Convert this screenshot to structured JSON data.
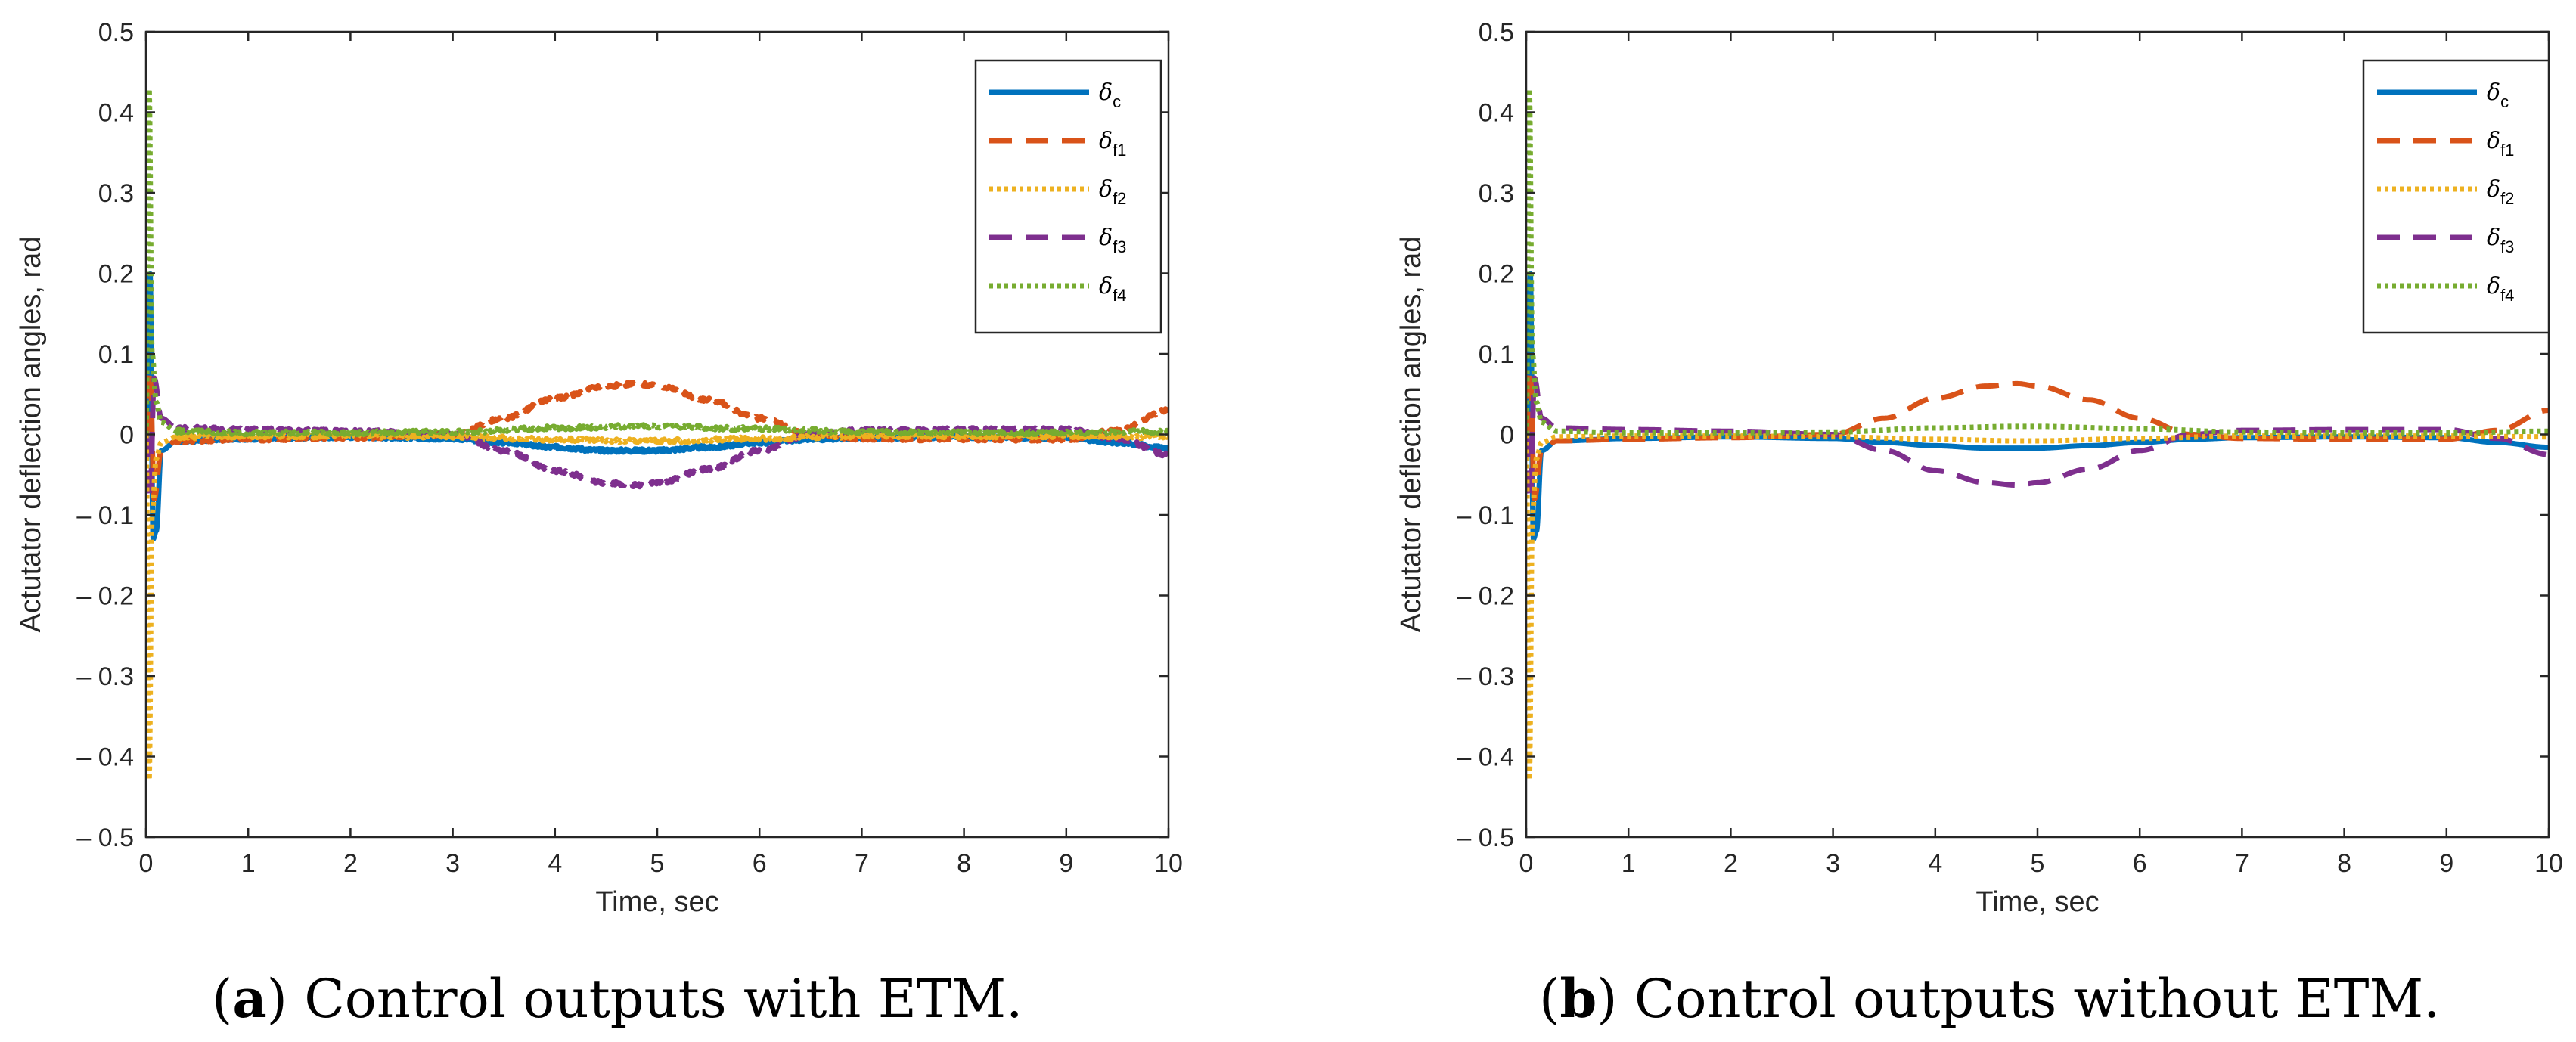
{
  "figure": {
    "charts": [
      {
        "id": "a",
        "caption_letter": "a",
        "caption_text": "Control outputs with ETM.",
        "caption_open": "(",
        "caption_close": ") ",
        "noisy": true
      },
      {
        "id": "b",
        "caption_letter": "b",
        "caption_text": "Control outputs without ETM.",
        "caption_open": "(",
        "caption_close": ") ",
        "noisy": false
      }
    ]
  },
  "chart_data": [
    {
      "type": "line",
      "title": "",
      "xlabel": "Time, sec",
      "ylabel": "Actutator deflection angles, rad",
      "xlim": [
        0,
        10
      ],
      "ylim": [
        -0.5,
        0.5
      ],
      "xticks": [
        "0",
        "1",
        "2",
        "3",
        "4",
        "5",
        "6",
        "7",
        "8",
        "9",
        "10"
      ],
      "yticks": [
        "0.5",
        "0.4",
        "0.3",
        "0.2",
        "0.1",
        "0",
        "– 0.1",
        "– 0.2",
        "– 0.3",
        "– 0.4",
        "– 0.5"
      ],
      "legend_position": "top-right",
      "series": [
        {
          "name": "δc",
          "sym": "δ",
          "sub": "c",
          "color": "#0072BD",
          "style": "solid",
          "x": [
            0,
            0.04,
            0.07,
            0.1,
            0.15,
            0.3,
            1,
            2,
            3,
            3.5,
            4,
            4.5,
            5,
            5.5,
            6,
            6.5,
            7,
            8,
            9,
            9.5,
            10
          ],
          "y": [
            0,
            0.2,
            -0.13,
            -0.12,
            -0.02,
            -0.008,
            -0.005,
            -0.003,
            -0.005,
            -0.01,
            -0.016,
            -0.02,
            -0.02,
            -0.016,
            -0.01,
            -0.006,
            -0.004,
            -0.003,
            -0.004,
            -0.01,
            -0.017
          ]
        },
        {
          "name": "δf1",
          "sym": "δ",
          "sub": "f1",
          "color": "#D95319",
          "style": "dashed",
          "x": [
            0,
            0.04,
            0.08,
            0.15,
            0.3,
            1,
            2,
            3,
            3.5,
            4,
            4.5,
            4.8,
            5,
            5.5,
            6,
            6.5,
            7,
            8,
            9,
            9.5,
            10
          ],
          "y": [
            0,
            0.08,
            -0.08,
            -0.02,
            -0.008,
            -0.006,
            -0.004,
            0,
            0.02,
            0.045,
            0.06,
            0.063,
            0.06,
            0.043,
            0.02,
            0,
            -0.005,
            -0.006,
            -0.006,
            0.005,
            0.03
          ]
        },
        {
          "name": "δf2",
          "sym": "δ",
          "sub": "f2",
          "color": "#EDB120",
          "style": "dotted",
          "x": [
            0,
            0.03,
            0.06,
            0.1,
            0.15,
            0.3,
            1,
            2,
            3,
            4,
            4.8,
            5,
            6,
            7,
            8,
            9,
            10
          ],
          "y": [
            0,
            -0.43,
            -0.1,
            -0.03,
            -0.01,
            -0.003,
            -0.002,
            -0.002,
            -0.003,
            -0.006,
            -0.008,
            -0.008,
            -0.005,
            -0.002,
            -0.002,
            -0.002,
            -0.003
          ]
        },
        {
          "name": "δf3",
          "sym": "δ",
          "sub": "f3",
          "color": "#7E2F8E",
          "style": "dashed",
          "x": [
            0,
            0.04,
            0.08,
            0.15,
            0.3,
            1,
            2,
            3,
            3.5,
            4,
            4.5,
            4.8,
            5,
            5.5,
            6,
            6.5,
            7,
            8,
            9,
            9.5,
            10
          ],
          "y": [
            0,
            -0.08,
            0.07,
            0.02,
            0.008,
            0.006,
            0.004,
            0,
            -0.02,
            -0.045,
            -0.06,
            -0.063,
            -0.06,
            -0.043,
            -0.02,
            0,
            0.005,
            0.006,
            0.006,
            -0.005,
            -0.025
          ]
        },
        {
          "name": "δf4",
          "sym": "δ",
          "sub": "f4",
          "color": "#77AC30",
          "style": "dotted",
          "x": [
            0,
            0.03,
            0.06,
            0.1,
            0.15,
            0.3,
            1,
            2,
            3,
            4,
            4.8,
            5,
            6,
            7,
            8,
            9,
            10
          ],
          "y": [
            0,
            0.43,
            0.1,
            0.04,
            0.015,
            0.004,
            0.002,
            0.002,
            0.003,
            0.008,
            0.01,
            0.01,
            0.007,
            0.003,
            0.002,
            0.002,
            0.004
          ]
        }
      ]
    },
    {
      "type": "line",
      "title": "",
      "xlabel": "Time, sec",
      "ylabel": "Actutator deflection angles, rad",
      "xlim": [
        0,
        10
      ],
      "ylim": [
        -0.5,
        0.5
      ],
      "xticks": [
        "0",
        "1",
        "2",
        "3",
        "4",
        "5",
        "6",
        "7",
        "8",
        "9",
        "10"
      ],
      "yticks": [
        "0.5",
        "0.4",
        "0.3",
        "0.2",
        "0.1",
        "0",
        "– 0.1",
        "– 0.2",
        "– 0.3",
        "– 0.4",
        "– 0.5"
      ],
      "legend_position": "top-right",
      "series": [
        {
          "name": "δc",
          "sym": "δ",
          "sub": "c",
          "color": "#0072BD",
          "style": "solid",
          "x": [
            0,
            0.04,
            0.07,
            0.1,
            0.15,
            0.3,
            1,
            2,
            3,
            3.5,
            4,
            4.5,
            5,
            5.5,
            6,
            6.5,
            7,
            8,
            9,
            9.5,
            10
          ],
          "y": [
            0,
            0.2,
            -0.13,
            -0.12,
            -0.02,
            -0.008,
            -0.005,
            -0.003,
            -0.005,
            -0.01,
            -0.014,
            -0.017,
            -0.017,
            -0.014,
            -0.01,
            -0.006,
            -0.004,
            -0.003,
            -0.004,
            -0.01,
            -0.016
          ]
        },
        {
          "name": "δf1",
          "sym": "δ",
          "sub": "f1",
          "color": "#D95319",
          "style": "dashed",
          "x": [
            0,
            0.04,
            0.08,
            0.15,
            0.3,
            1,
            2,
            3,
            3.5,
            4,
            4.5,
            4.8,
            5,
            5.5,
            6,
            6.5,
            7,
            8,
            9,
            9.5,
            10
          ],
          "y": [
            0,
            0.08,
            -0.08,
            -0.02,
            -0.008,
            -0.006,
            -0.004,
            0,
            0.02,
            0.045,
            0.06,
            0.063,
            0.06,
            0.043,
            0.02,
            0,
            -0.005,
            -0.006,
            -0.006,
            0.005,
            0.03
          ]
        },
        {
          "name": "δf2",
          "sym": "δ",
          "sub": "f2",
          "color": "#EDB120",
          "style": "dotted",
          "x": [
            0,
            0.03,
            0.06,
            0.1,
            0.15,
            0.3,
            1,
            2,
            3,
            4,
            4.8,
            5,
            6,
            7,
            8,
            9,
            10
          ],
          "y": [
            0,
            -0.43,
            -0.1,
            -0.03,
            -0.01,
            -0.003,
            -0.002,
            -0.002,
            -0.003,
            -0.006,
            -0.008,
            -0.008,
            -0.005,
            -0.002,
            -0.002,
            -0.002,
            -0.003
          ]
        },
        {
          "name": "δf3",
          "sym": "δ",
          "sub": "f3",
          "color": "#7E2F8E",
          "style": "dashed",
          "x": [
            0,
            0.04,
            0.08,
            0.15,
            0.3,
            1,
            2,
            3,
            3.5,
            4,
            4.5,
            4.8,
            5,
            5.5,
            6,
            6.5,
            7,
            8,
            9,
            9.5,
            10
          ],
          "y": [
            0,
            -0.08,
            0.07,
            0.02,
            0.008,
            0.006,
            0.004,
            0,
            -0.02,
            -0.045,
            -0.06,
            -0.063,
            -0.06,
            -0.043,
            -0.02,
            0,
            0.005,
            0.006,
            0.006,
            -0.005,
            -0.025
          ]
        },
        {
          "name": "δf4",
          "sym": "δ",
          "sub": "f4",
          "color": "#77AC30",
          "style": "dotted",
          "x": [
            0,
            0.03,
            0.06,
            0.1,
            0.15,
            0.3,
            1,
            2,
            3,
            4,
            4.8,
            5,
            6,
            7,
            8,
            9,
            10
          ],
          "y": [
            0,
            0.43,
            0.1,
            0.04,
            0.015,
            0.004,
            0.002,
            0.002,
            0.003,
            0.008,
            0.01,
            0.01,
            0.007,
            0.003,
            0.002,
            0.002,
            0.004
          ]
        }
      ]
    }
  ]
}
